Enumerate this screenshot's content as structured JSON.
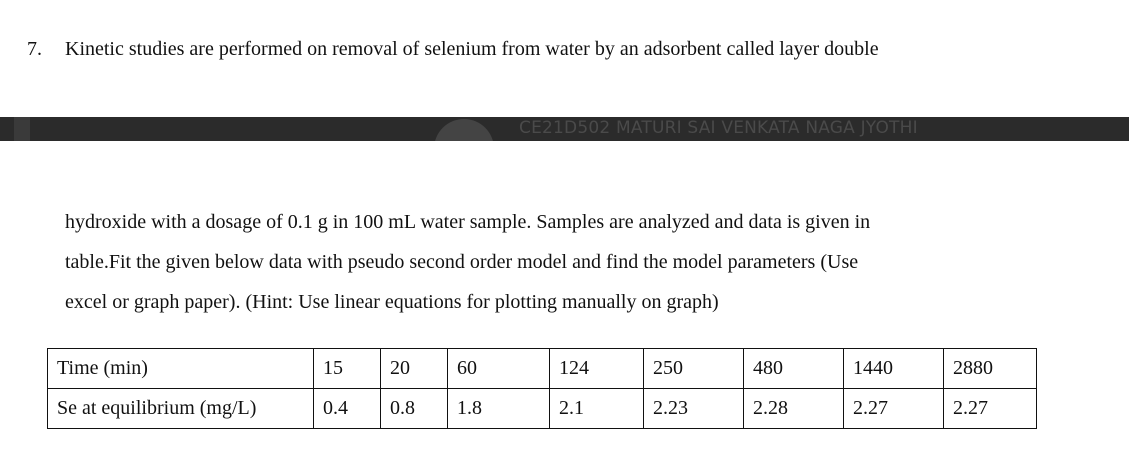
{
  "question": {
    "number": "7.",
    "first_line": "Kinetic studies are performed on removal of selenium from water by an adsorbent called layer double",
    "continuation": [
      "hydroxide with a dosage of 0.1 g in 100 mL water sample. Samples are analyzed and data is given in",
      "table.Fit the given below data with pseudo second order model and find the model parameters (Use",
      "excel or graph paper). (Hint: Use linear equations for plotting manually on graph)"
    ]
  },
  "banner": {
    "name": "CE21D502 MATURI SAI VENKATA NAGA JYOTHI"
  },
  "table": {
    "rows": [
      [
        "Time (min)",
        "15",
        "20",
        "60",
        "124",
        "250",
        "480",
        "1440",
        "2880"
      ],
      [
        "Se at equilibrium (mg/L)",
        "0.4",
        "0.8",
        "1.8",
        "2.1",
        "2.23",
        "2.28",
        "2.27",
        "2.27"
      ]
    ]
  }
}
